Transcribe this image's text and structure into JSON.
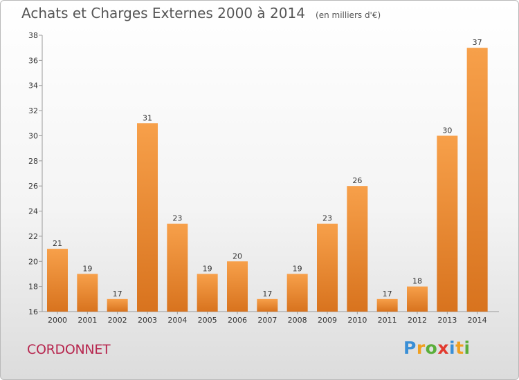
{
  "title": "Achats et Charges Externes 2000 à 2014",
  "subtitle": "(en milliers d'€)",
  "commune": "CORDONNET",
  "logo": {
    "text": "Proxiti",
    "letters": [
      {
        "ch": "P",
        "color": "#3a8fd6"
      },
      {
        "ch": "r",
        "color": "#f0a020"
      },
      {
        "ch": "o",
        "color": "#5aae3a"
      },
      {
        "ch": "x",
        "color": "#e23a2e"
      },
      {
        "ch": "i",
        "color": "#3a8fd6"
      },
      {
        "ch": "t",
        "color": "#f0a020"
      },
      {
        "ch": "i",
        "color": "#5aae3a"
      }
    ]
  },
  "chart_data": {
    "type": "bar",
    "title": "Achats et Charges Externes 2000 à 2014",
    "subtitle": "(en milliers d'€)",
    "xlabel": "",
    "ylabel": "",
    "categories": [
      "2000",
      "2001",
      "2002",
      "2003",
      "2004",
      "2005",
      "2006",
      "2007",
      "2008",
      "2009",
      "2010",
      "2011",
      "2012",
      "2013",
      "2014"
    ],
    "values": [
      21,
      19,
      17,
      31,
      23,
      19,
      20,
      17,
      19,
      23,
      26,
      17,
      18,
      30,
      37
    ],
    "ylim": [
      16,
      38
    ],
    "yticks": [
      16,
      18,
      20,
      22,
      24,
      26,
      28,
      30,
      32,
      34,
      36,
      38
    ],
    "grid": false,
    "legend": "none",
    "colors": {
      "bar_top": "#f7a04a",
      "bar_bottom": "#d8731e",
      "axis": "#9a9a9a"
    }
  }
}
